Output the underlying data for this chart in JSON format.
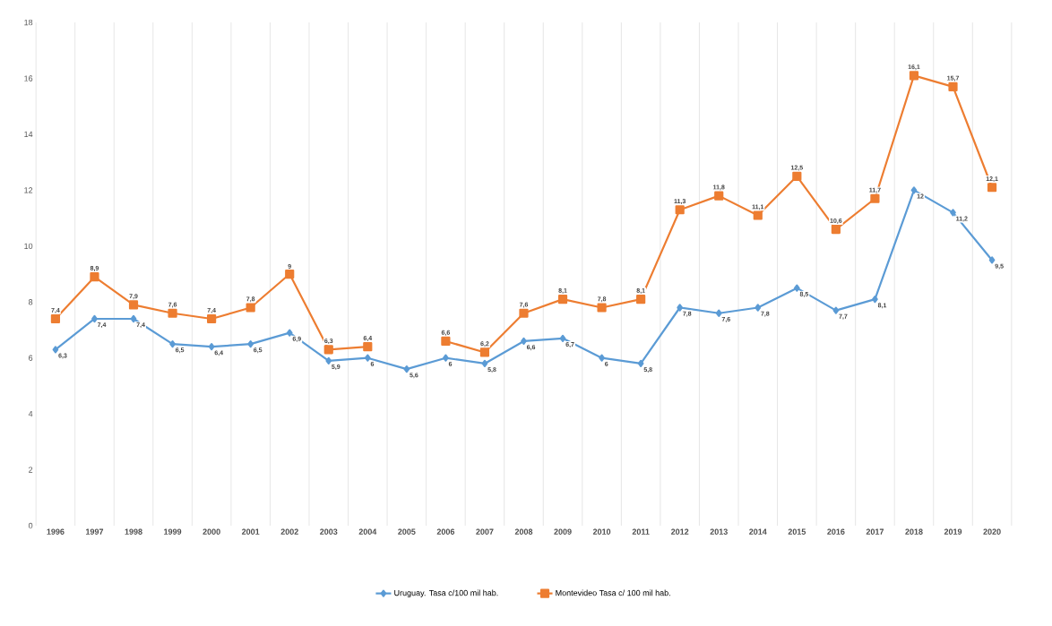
{
  "chart_data": {
    "type": "line",
    "categories": [
      "1996",
      "1997",
      "1998",
      "1999",
      "2000",
      "2001",
      "2002",
      "2003",
      "2004",
      "2005",
      "2006",
      "2007",
      "2008",
      "2009",
      "2010",
      "2011",
      "2012",
      "2013",
      "2014",
      "2015",
      "2016",
      "2017",
      "2018",
      "2019",
      "2020"
    ],
    "series": [
      {
        "name": "Uruguay. Tasa c/100 mil hab.",
        "color": "#5b9bd5",
        "marker": "diamond",
        "values": [
          6.3,
          7.4,
          7.4,
          6.5,
          6.4,
          6.5,
          6.9,
          5.9,
          6,
          5.6,
          6,
          5.8,
          6.6,
          6.7,
          6,
          5.8,
          7.8,
          7.6,
          7.8,
          8.5,
          7.7,
          8.1,
          12,
          11.2,
          9.5
        ],
        "value_labels": [
          "6,3",
          "7,4",
          "7,4",
          "6,5",
          "6,4",
          "6,5",
          "6,9",
          "5,9",
          "6",
          "5,6",
          "6",
          "5,8",
          "6,6",
          "6,7",
          "6",
          "5,8",
          "7,8",
          "7,6",
          "7,8",
          "8,5",
          "7,7",
          "8,1",
          "12",
          "11,2",
          "9,5"
        ]
      },
      {
        "name": "Montevideo Tasa c/ 100 mil hab.",
        "color": "#ed7d31",
        "marker": "square",
        "values": [
          7.4,
          8.9,
          7.9,
          7.6,
          7.4,
          7.8,
          9,
          6.3,
          6.4,
          null,
          6.6,
          6.2,
          7.6,
          8.1,
          7.8,
          8.1,
          11.3,
          11.8,
          11.1,
          12.5,
          10.6,
          11.7,
          16.1,
          15.7,
          12.1
        ],
        "value_labels": [
          "7,4",
          "8,9",
          "7,9",
          "7,6",
          "7,4",
          "7,8",
          "9",
          "6,3",
          "6,4",
          null,
          "6,6",
          "6,2",
          "7,6",
          "8,1",
          "7,8",
          "8,1",
          "11,3",
          "11,8",
          "11,1",
          "12,5",
          "10,6",
          "11,7",
          "16,1",
          "15,7",
          "12,1"
        ]
      }
    ],
    "ylim": [
      0,
      18
    ],
    "yticks": [
      0,
      2,
      4,
      6,
      8,
      10,
      12,
      14,
      16,
      18
    ],
    "grid": "x",
    "legend": "bottom",
    "line_style": "solid"
  }
}
